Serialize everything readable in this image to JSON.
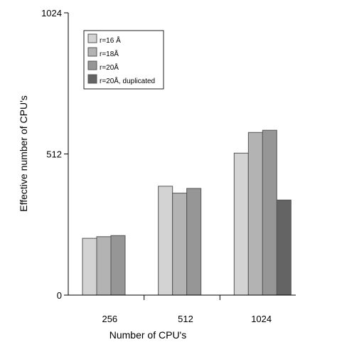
{
  "chart_data": {
    "type": "bar",
    "title": "",
    "xlabel": "Number of CPU's",
    "ylabel": "Effective number of CPU's",
    "categories": [
      "256",
      "512",
      "1024"
    ],
    "yticks": [
      "0",
      "512",
      "1024"
    ],
    "ytick_values": [
      0,
      512,
      1024
    ],
    "ylim": [
      0,
      1024
    ],
    "legend_position": "top-left",
    "grid": false,
    "series": [
      {
        "name": "r=16 Å",
        "color": "#d3d3d3",
        "values": [
          206,
          395,
          515
        ]
      },
      {
        "name": "r=18Å",
        "color": "#b3b3b3",
        "values": [
          212,
          370,
          590
        ]
      },
      {
        "name": "r=20Å",
        "color": "#969696",
        "values": [
          216,
          387,
          598
        ]
      },
      {
        "name": "r=20Å, duplicated",
        "color": "#646464",
        "values": [
          null,
          null,
          345
        ]
      }
    ]
  }
}
